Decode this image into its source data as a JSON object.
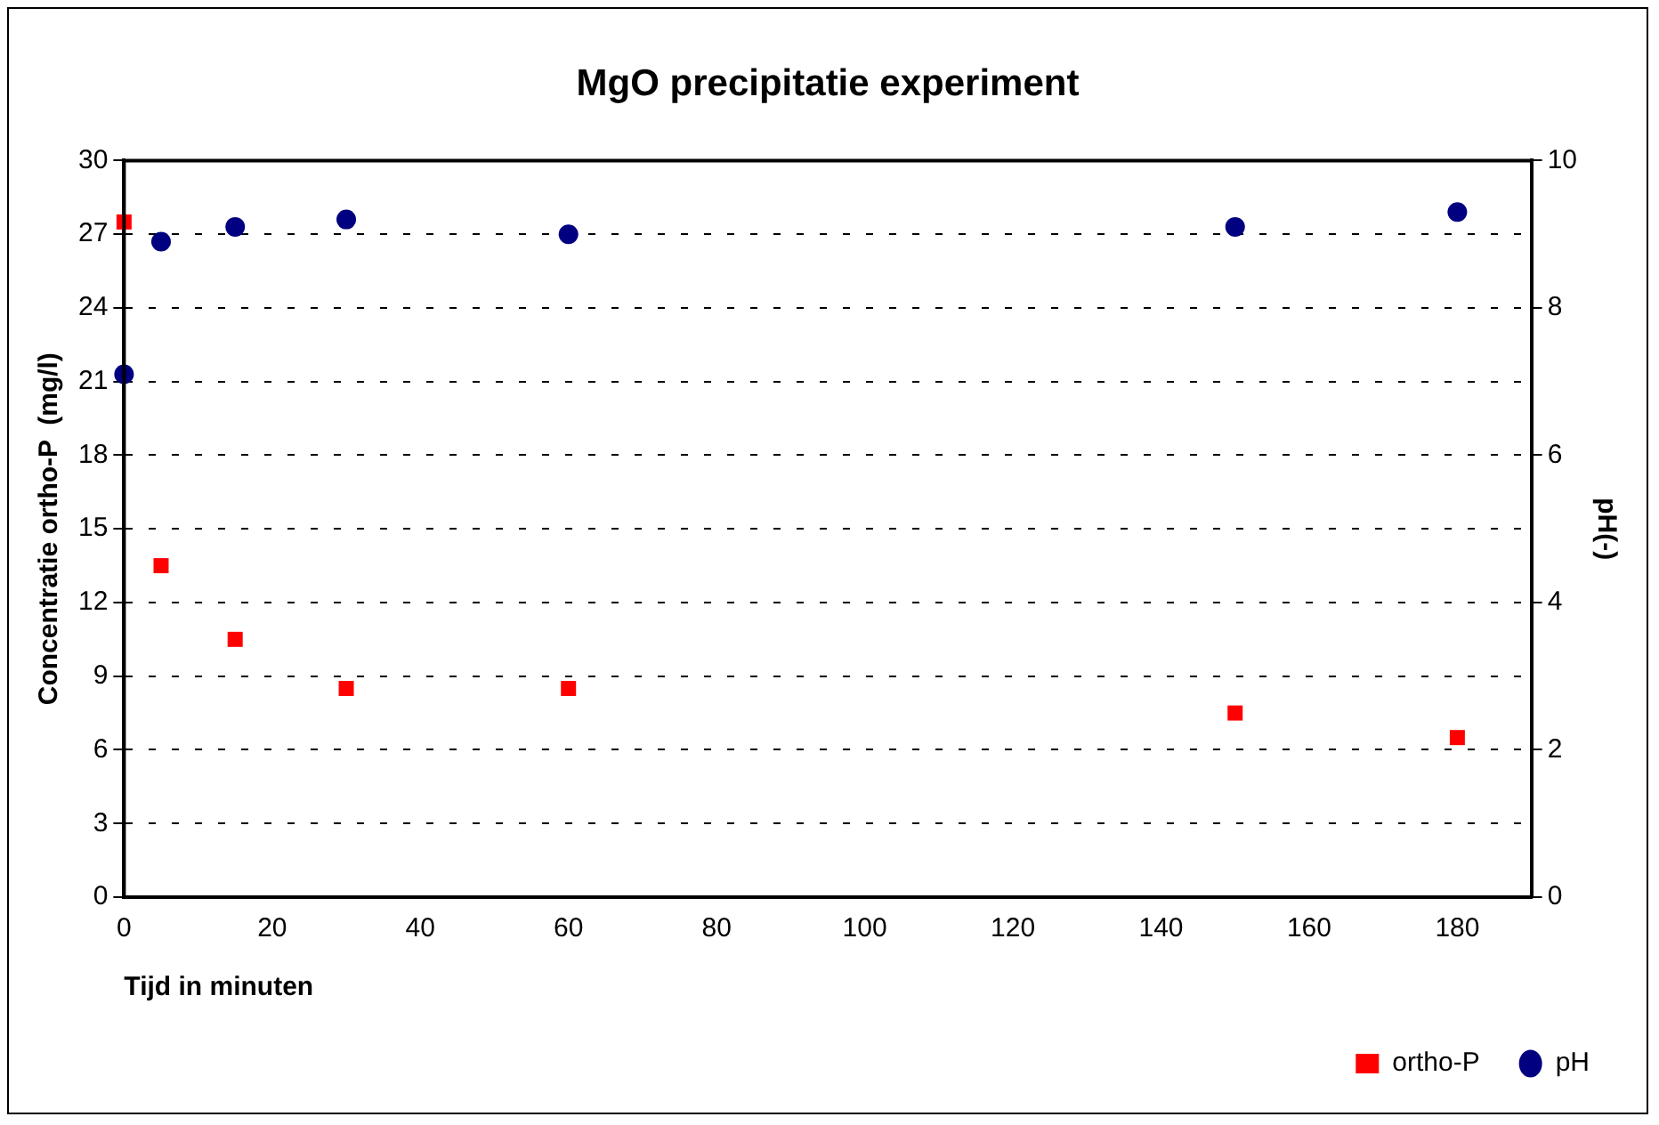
{
  "chart_data": {
    "type": "scatter",
    "title": "MgO precipitatie experiment",
    "xlabel": "Tijd in minuten",
    "ylabel": "Concentratie ortho-P  (mg/l)",
    "y2label": "pH(-)",
    "x": [
      0,
      5,
      15,
      30,
      60,
      150,
      180
    ],
    "series": [
      {
        "name": "ortho-P",
        "color": "#ff0000",
        "marker": "square",
        "values": [
          27.5,
          13.5,
          10.5,
          8.5,
          8.5,
          7.5,
          6.5
        ]
      },
      {
        "name": "pH",
        "color": "#000080",
        "marker": "circle",
        "axis": "y2",
        "values": [
          7.1,
          8.9,
          9.1,
          9.2,
          9.0,
          9.1,
          9.3
        ]
      }
    ],
    "xlim": [
      0,
      190
    ],
    "xticks": [
      0,
      20,
      40,
      60,
      80,
      100,
      120,
      140,
      160,
      180
    ],
    "ylim": [
      0,
      30
    ],
    "yticks": [
      0,
      3,
      6,
      9,
      12,
      15,
      18,
      21,
      24,
      27,
      30
    ],
    "y2lim": [
      0,
      10
    ],
    "y2ticks": [
      0,
      2,
      4,
      6,
      8,
      10
    ],
    "grid": "y",
    "legend": "bottom right"
  }
}
